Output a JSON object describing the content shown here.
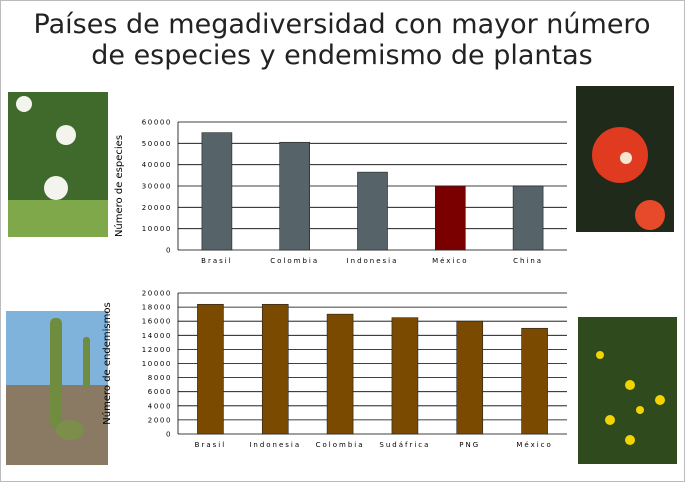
{
  "slide": {
    "title_line1": "Países de megadiversidad con mayor número",
    "title_line2": "de especies y endemismo de plantas"
  },
  "chart_data": [
    {
      "type": "bar",
      "ylabel": "Número de especies",
      "categories": [
        "Brasil",
        "Colombia",
        "Indonesia",
        "México",
        "China"
      ],
      "values": [
        55000,
        50500,
        36500,
        30000,
        30000
      ],
      "colors": [
        "#56646a",
        "#56646a",
        "#56646a",
        "#7a0000",
        "#56646a"
      ],
      "ylim": [
        0,
        60000
      ],
      "yticks": [
        0,
        10000,
        20000,
        30000,
        40000,
        50000,
        60000
      ],
      "grid": true
    },
    {
      "type": "bar",
      "ylabel": "Número de endemismos",
      "categories": [
        "Brasil",
        "Indonesia",
        "Colombia",
        "Sudáfrica",
        "PNG",
        "México"
      ],
      "values": [
        18400,
        18400,
        17000,
        16500,
        16000,
        15000
      ],
      "colors": [
        "#7a4a00",
        "#7a4a00",
        "#7a4a00",
        "#7a4a00",
        "#7a4a00",
        "#7a4a00"
      ],
      "ylim": [
        0,
        20000
      ],
      "yticks": [
        0,
        2000,
        4000,
        6000,
        8000,
        10000,
        12000,
        14000,
        16000,
        18000,
        20000
      ],
      "grid": true
    }
  ]
}
